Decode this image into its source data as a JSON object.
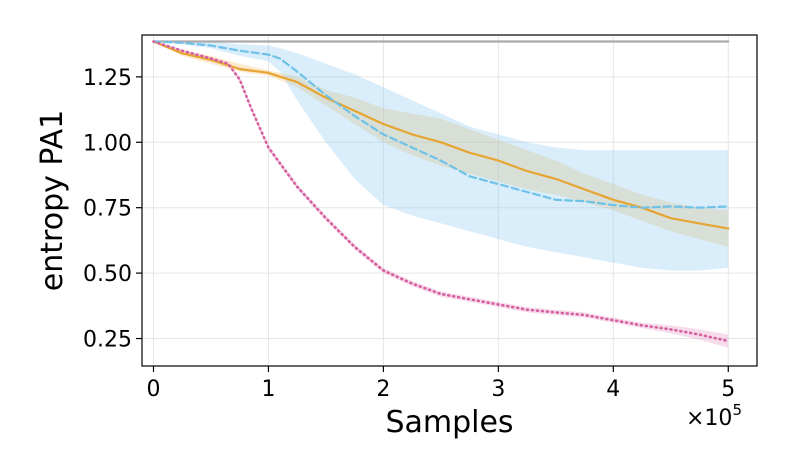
{
  "chart_data": {
    "type": "line",
    "title": "",
    "xlabel": "Samples",
    "ylabel": "entropy PA1",
    "x_multiplier_label": "×10",
    "x_multiplier_exponent": "5",
    "xlim": [
      -0.1,
      5.25
    ],
    "ylim": [
      0.145,
      1.41
    ],
    "x_ticks": [
      0,
      1,
      2,
      3,
      4,
      5
    ],
    "x_tick_labels": [
      "0",
      "1",
      "2",
      "3",
      "4",
      "5"
    ],
    "y_ticks": [
      0.25,
      0.5,
      0.75,
      1.0,
      1.25
    ],
    "y_tick_labels": [
      "0.25",
      "0.50",
      "0.75",
      "1.00",
      "1.25"
    ],
    "grid": true,
    "legend": "none",
    "series": [
      {
        "color": "#aaaaaa",
        "style": "solid",
        "x": [
          0,
          5
        ],
        "y": [
          1.385,
          1.385
        ],
        "band_lower": [],
        "band_upper": []
      },
      {
        "color": "#e6a532",
        "style": "solid",
        "x": [
          0,
          0.25,
          0.5,
          0.75,
          1.0,
          1.25,
          1.5,
          1.75,
          2.0,
          2.25,
          2.5,
          2.75,
          3.0,
          3.25,
          3.5,
          3.75,
          4.0,
          4.25,
          4.5,
          4.75,
          5.0
        ],
        "y": [
          1.385,
          1.34,
          1.315,
          1.28,
          1.265,
          1.23,
          1.17,
          1.12,
          1.07,
          1.03,
          1.0,
          0.96,
          0.93,
          0.89,
          0.86,
          0.82,
          0.78,
          0.75,
          0.71,
          0.69,
          0.67
        ],
        "band_lower": [
          1.385,
          1.33,
          1.3,
          1.27,
          1.255,
          1.21,
          1.14,
          1.07,
          1.0,
          0.95,
          0.91,
          0.88,
          0.85,
          0.82,
          0.8,
          0.77,
          0.74,
          0.7,
          0.66,
          0.63,
          0.6
        ],
        "band_upper": [
          1.385,
          1.35,
          1.33,
          1.3,
          1.275,
          1.25,
          1.2,
          1.17,
          1.13,
          1.11,
          1.09,
          1.05,
          1.01,
          0.97,
          0.93,
          0.88,
          0.84,
          0.8,
          0.77,
          0.75,
          0.74
        ]
      },
      {
        "color": "#6ec2e8",
        "style": "dashed",
        "x": [
          0,
          0.25,
          0.5,
          0.75,
          1.0,
          1.1,
          1.25,
          1.5,
          1.75,
          2.0,
          2.25,
          2.5,
          2.75,
          3.0,
          3.25,
          3.5,
          3.75,
          4.0,
          4.25,
          4.5,
          4.75,
          5.0
        ],
        "y": [
          1.385,
          1.38,
          1.37,
          1.35,
          1.335,
          1.32,
          1.27,
          1.18,
          1.1,
          1.03,
          0.98,
          0.93,
          0.87,
          0.84,
          0.81,
          0.78,
          0.775,
          0.76,
          0.75,
          0.755,
          0.75,
          0.755
        ],
        "band_lower": [
          1.385,
          1.375,
          1.36,
          1.33,
          1.31,
          1.27,
          1.16,
          1.0,
          0.86,
          0.76,
          0.72,
          0.69,
          0.66,
          0.63,
          0.6,
          0.58,
          0.56,
          0.54,
          0.52,
          0.51,
          0.51,
          0.52
        ],
        "band_upper": [
          1.385,
          1.385,
          1.385,
          1.375,
          1.37,
          1.36,
          1.34,
          1.3,
          1.26,
          1.21,
          1.16,
          1.11,
          1.06,
          1.03,
          1.0,
          0.98,
          0.97,
          0.97,
          0.97,
          0.97,
          0.97,
          0.97
        ]
      },
      {
        "color": "#d6609f",
        "style": "dotted",
        "x": [
          0,
          0.25,
          0.5,
          0.65,
          0.75,
          0.85,
          1.0,
          1.25,
          1.5,
          1.75,
          2.0,
          2.25,
          2.5,
          2.75,
          3.0,
          3.25,
          3.5,
          3.75,
          4.0,
          4.25,
          4.5,
          4.75,
          5.0
        ],
        "y": [
          1.385,
          1.35,
          1.32,
          1.3,
          1.24,
          1.13,
          0.98,
          0.83,
          0.71,
          0.6,
          0.51,
          0.46,
          0.42,
          0.4,
          0.38,
          0.36,
          0.35,
          0.34,
          0.32,
          0.3,
          0.285,
          0.265,
          0.24
        ],
        "band_lower": [
          1.385,
          1.345,
          1.315,
          1.295,
          1.23,
          1.12,
          0.97,
          0.82,
          0.7,
          0.59,
          0.5,
          0.45,
          0.41,
          0.39,
          0.37,
          0.35,
          0.34,
          0.33,
          0.31,
          0.29,
          0.27,
          0.245,
          0.215
        ],
        "band_upper": [
          1.385,
          1.355,
          1.325,
          1.305,
          1.25,
          1.14,
          0.99,
          0.84,
          0.72,
          0.61,
          0.52,
          0.47,
          0.43,
          0.41,
          0.39,
          0.37,
          0.36,
          0.35,
          0.33,
          0.31,
          0.3,
          0.285,
          0.265
        ]
      }
    ]
  }
}
